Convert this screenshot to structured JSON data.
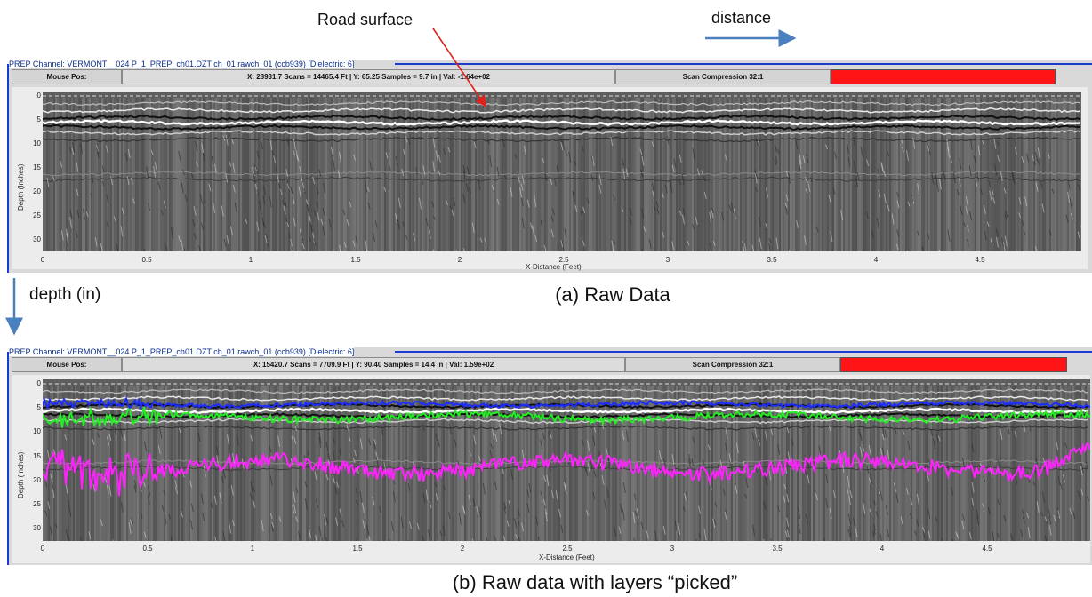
{
  "annotations": {
    "road_surface": "Road surface",
    "distance": "distance",
    "depth": "depth (in)"
  },
  "captions": {
    "a": "(a)  Raw Data",
    "b": "(b)  Raw data with layers “picked”"
  },
  "colors": {
    "title_line": "#1a3ccc",
    "compression_bar": "#ff1515",
    "arrow_red": "#e0201a",
    "arrow_blue": "#4a7fc0",
    "layer_blue": "#1a2cff",
    "layer_green": "#22ee22",
    "layer_magenta": "#ff22ff"
  },
  "panels": [
    {
      "title": "PREP Channel: VERMONT__024 P_1_PREP_ch01.DZT ch_01 rawch_01 (ccb939) [Dielectric: 6]",
      "mouse_label": "Mouse Pos:",
      "readout": "X: 28931.7 Scans  = 14465.4 Ft | Y: 65.25 Samples  = 9.7 in | Val: -1.64e+02",
      "compression": "Scan Compression 32:1",
      "y_axis_label": "Depth (Inches)",
      "x_axis_label": "X-Distance (Feet)",
      "y_ticks": [
        "0",
        "5",
        "10",
        "15",
        "20",
        "25",
        "30"
      ],
      "x_ticks": [
        "0",
        "0.5",
        "1",
        "1.5",
        "2",
        "2.5",
        "3",
        "3.5",
        "4",
        "4.5"
      ]
    },
    {
      "title": "PREP Channel: VERMONT__024 P_1_PREP_ch01.DZT ch_01 rawch_01 (ccb939) [Dielectric: 6]",
      "mouse_label": "Mouse Pos:",
      "readout": "X: 15420.7 Scans  = 7709.9 Ft | Y: 90.40 Samples  = 14.4 in | Val: 1.59e+02",
      "compression": "Scan Compression 32:1",
      "y_axis_label": "Depth (Inches)",
      "x_axis_label": "X-Distance (Feet)",
      "y_ticks": [
        "0",
        "5",
        "10",
        "15",
        "20",
        "25",
        "30"
      ],
      "x_ticks": [
        "0",
        "0.5",
        "1",
        "1.5",
        "2",
        "2.5",
        "3",
        "3.5",
        "4",
        "4.5"
      ]
    }
  ]
}
